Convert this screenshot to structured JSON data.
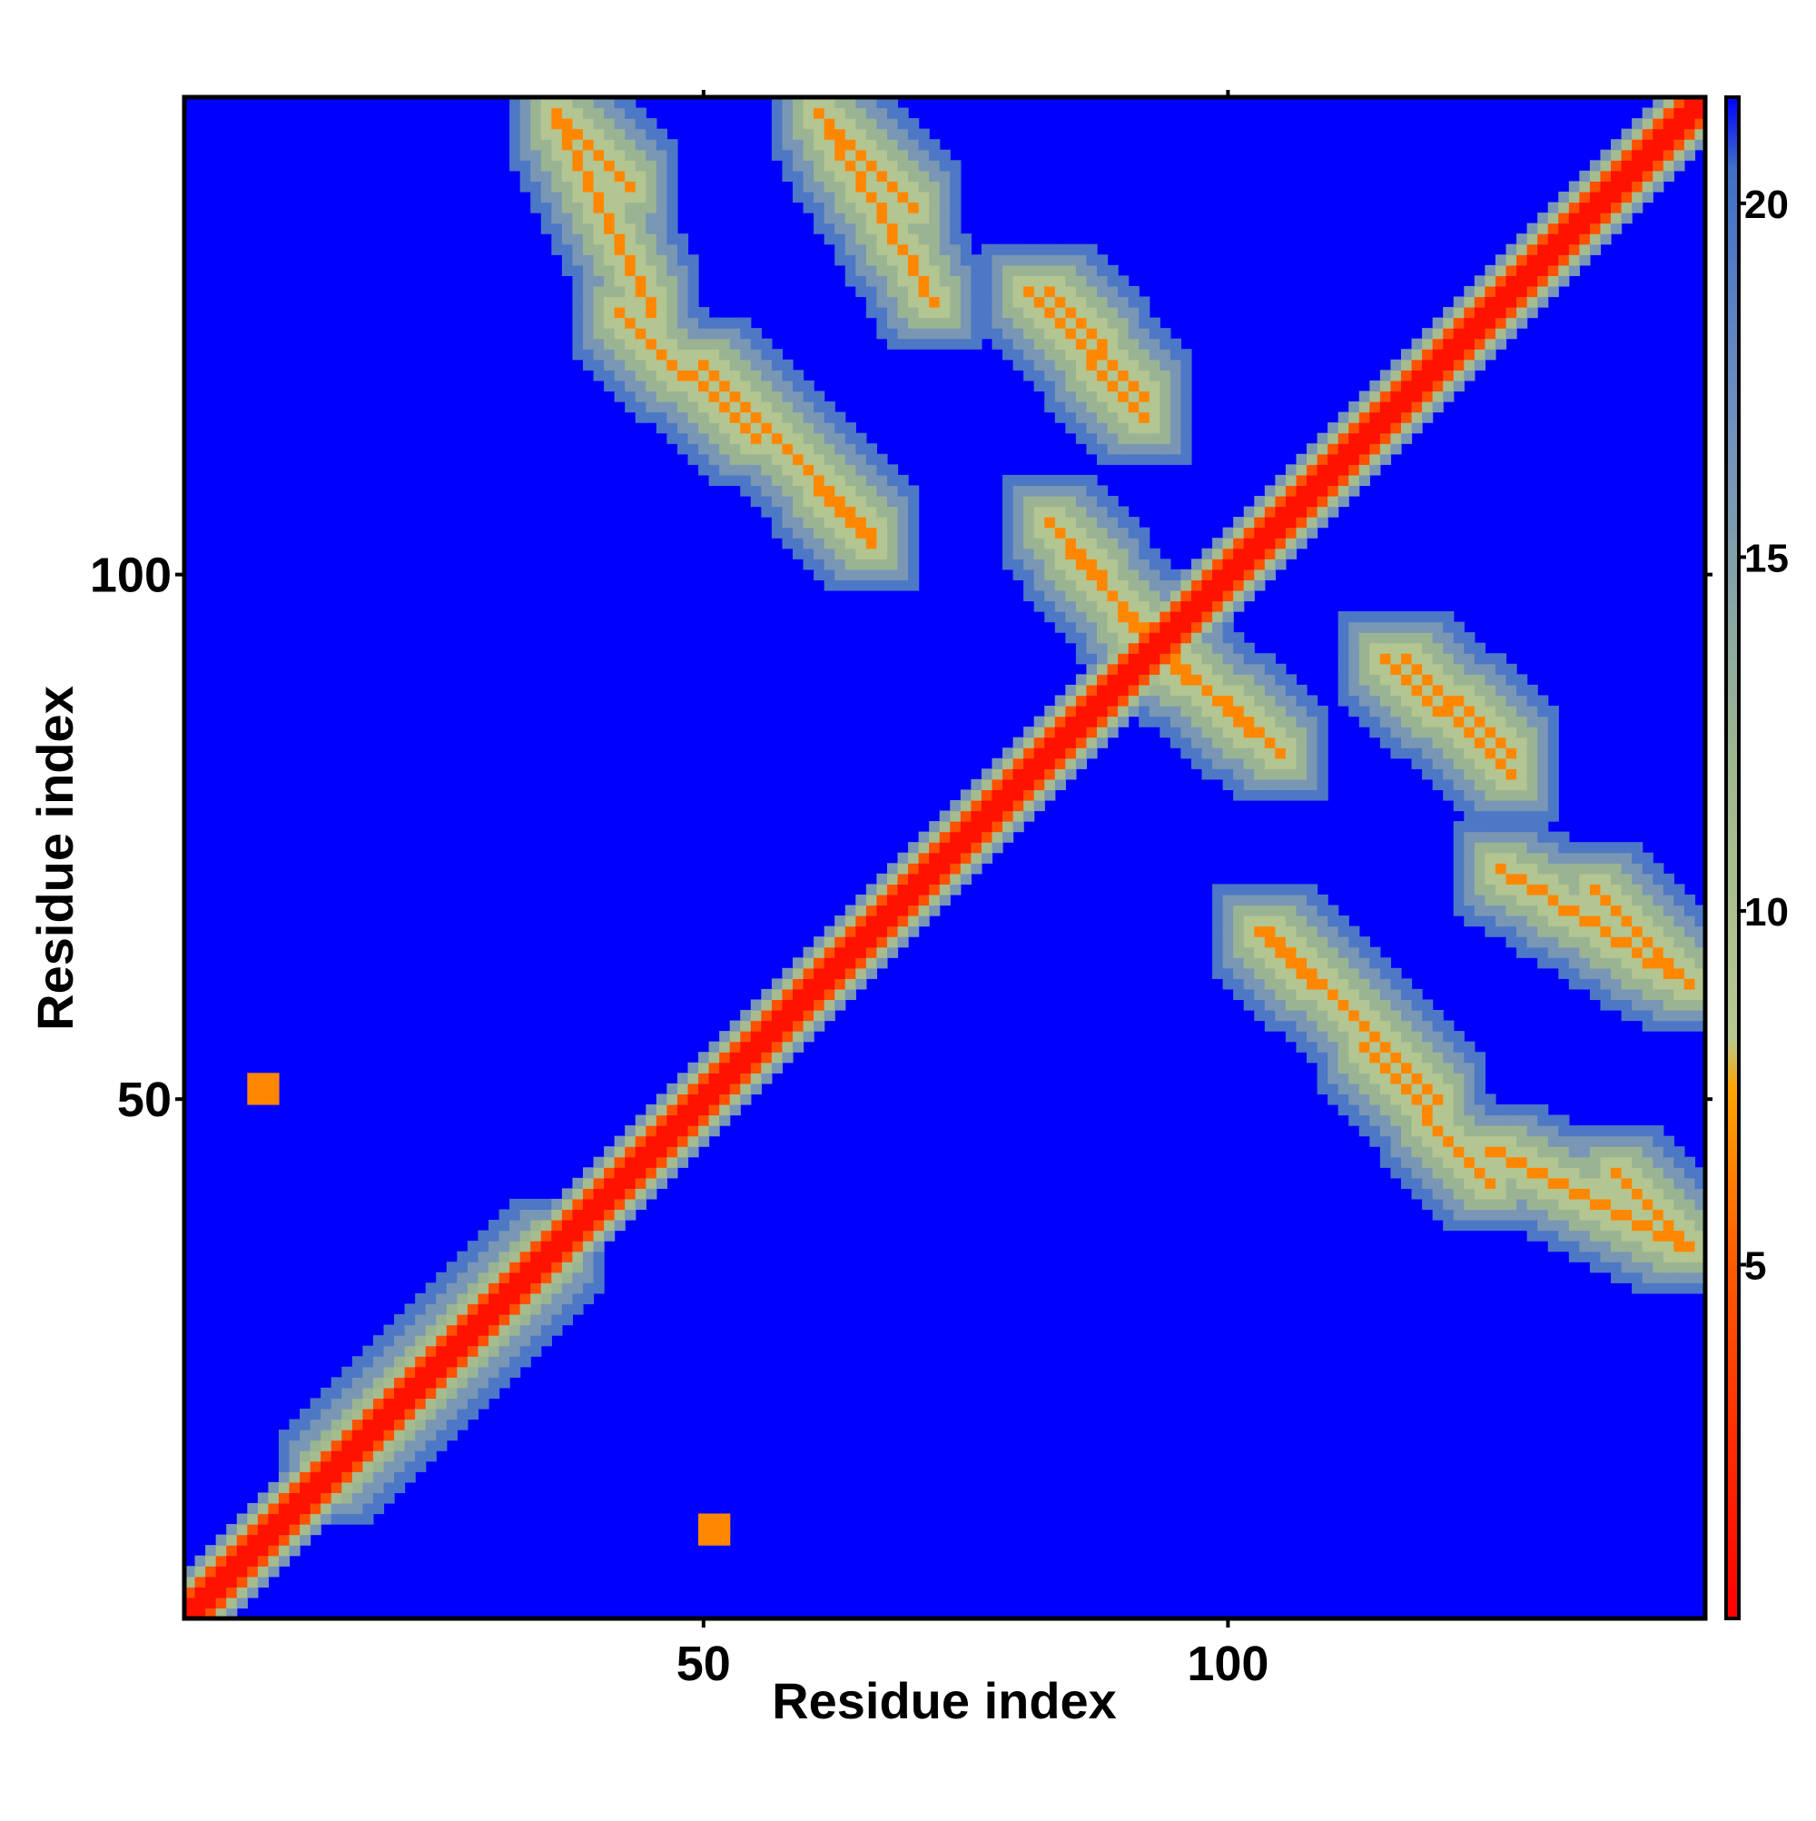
{
  "chart_data": {
    "type": "heatmap",
    "title": "",
    "xlabel": "Residue index",
    "ylabel": "Residue index",
    "xlim": [
      1,
      145
    ],
    "ylim": [
      1,
      145
    ],
    "x_ticks": [
      50,
      100
    ],
    "y_ticks": [
      50,
      100
    ],
    "colorbar": {
      "range": [
        0,
        21.5
      ],
      "ticks": [
        5,
        10,
        15,
        20
      ],
      "stops": [
        {
          "value": 0,
          "color": "#ff0000"
        },
        {
          "value": 5.0,
          "color": "#ff5a00"
        },
        {
          "value": 7.5,
          "color": "#ffa500"
        },
        {
          "value": 8.2,
          "color": "#b8c890"
        },
        {
          "value": 12.0,
          "color": "#9fb88e"
        },
        {
          "value": 17.0,
          "color": "#6f8fbe"
        },
        {
          "value": 20.5,
          "color": "#3f6fc8"
        },
        {
          "value": 21.5,
          "color": "#0000ff"
        }
      ]
    },
    "background_value": 21.5,
    "colors": {
      "background": "#0000ff",
      "contact": "#ff0000",
      "near": "#ffa500",
      "medium": "#9fb88e",
      "far": "#6f8fbe"
    },
    "features": [
      {
        "kind": "diagonal",
        "from": 1,
        "to": 145
      },
      {
        "kind": "antidiagonal",
        "x": [
          36,
          43
        ],
        "y": [
          144,
          137
        ]
      },
      {
        "kind": "antidiagonal",
        "x": [
          61,
          70
        ],
        "y": [
          144,
          135
        ]
      },
      {
        "kind": "antidiagonal",
        "x": [
          42,
          55
        ],
        "y": [
          125,
          113
        ]
      },
      {
        "kind": "antidiagonal",
        "x": [
          55,
          66
        ],
        "y": [
          115,
          103
        ]
      },
      {
        "kind": "antidiagonal",
        "x": [
          83,
          92
        ],
        "y": [
          127,
          117
        ]
      },
      {
        "kind": "antidiagonal",
        "x": [
          83,
          92
        ],
        "y": [
          105,
          94
        ]
      },
      {
        "kind": "antidiagonal",
        "x": [
          95,
          105
        ],
        "y": [
          92,
          83
        ]
      },
      {
        "kind": "antidiagonal",
        "x": [
          115,
          127
        ],
        "y": [
          92,
          81
        ]
      },
      {
        "kind": "antidiagonal",
        "x": [
          104,
          120
        ],
        "y": [
          66,
          50
        ]
      },
      {
        "kind": "antidiagonal",
        "x": [
          126,
          144
        ],
        "y": [
          72,
          61
        ]
      },
      {
        "kind": "antidiagonal",
        "x": [
          125,
          144
        ],
        "y": [
          45,
          36
        ]
      },
      {
        "kind": "parallel",
        "x": [
          14,
          36
        ],
        "y": [
          14,
          36
        ]
      },
      {
        "kind": "spot",
        "x": [
          7,
          9
        ],
        "y": [
          52,
          50
        ]
      },
      {
        "kind": "spot",
        "x": [
          50,
          52
        ],
        "y": [
          10,
          8
        ]
      }
    ]
  }
}
